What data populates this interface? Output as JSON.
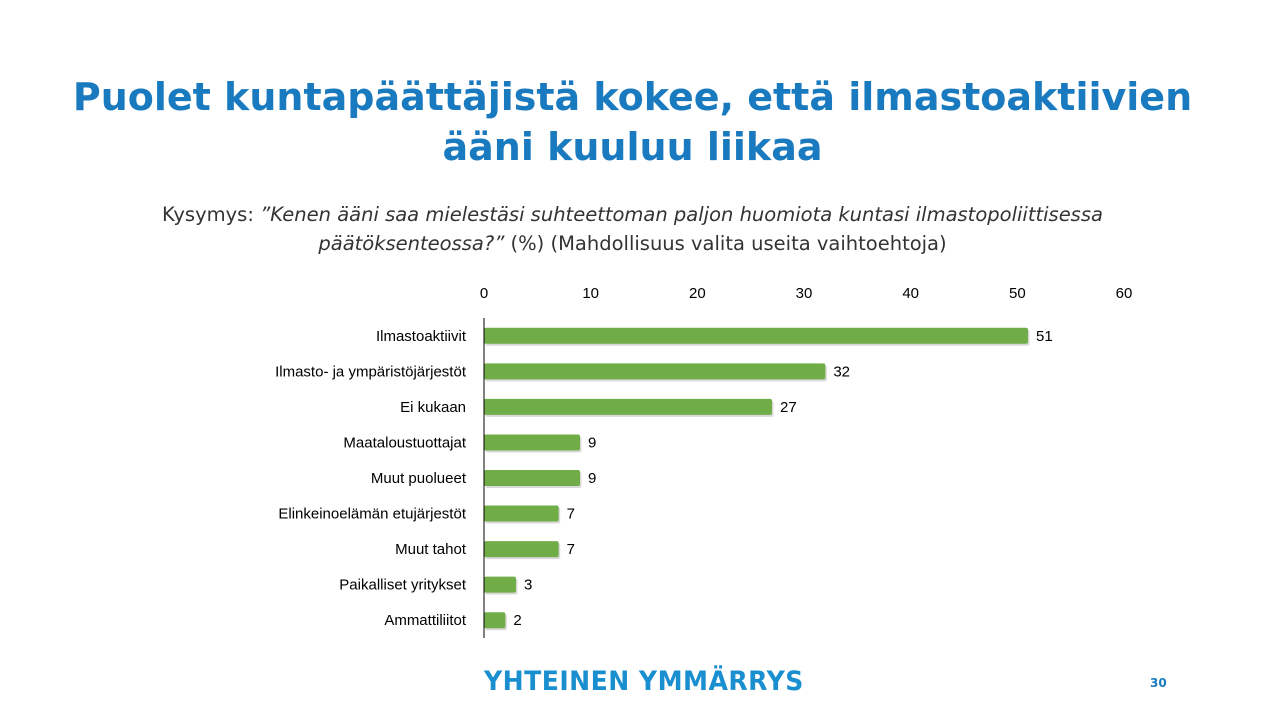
{
  "title": {
    "line1": "Puolet kuntapäättäjistä kokee, että ilmastoaktiivien",
    "line2": "ääni kuuluu liikaa"
  },
  "question": {
    "prefix": "Kysymys: ",
    "italic": "”Kenen ääni saa mielestäsi suhteettoman paljon huomiota kuntasi ilmastopoliittisessa päätöksenteossa?”",
    "suffix": " (%) (Mahdollisuus valita useita vaihtoehtoja)"
  },
  "logo": "YHTEINEN YMMÄRRYS",
  "page_number": "30",
  "colors": {
    "title": "#1a7abf",
    "bar": "#70ad47",
    "logo": "#1a8fd0"
  },
  "chart_data": {
    "type": "bar",
    "orientation": "horizontal",
    "categories": [
      "Ilmastoaktiivit",
      "Ilmasto- ja ympäristöjärjestöt",
      "Ei kukaan",
      "Maataloustuottajat",
      "Muut puolueet",
      "Elinkeinoelämän etujärjestöt",
      "Muut tahot",
      "Paikalliset yritykset",
      "Ammattiliitot"
    ],
    "values": [
      51,
      32,
      27,
      9,
      9,
      7,
      7,
      3,
      2
    ],
    "xlim": [
      0,
      60
    ],
    "xticks": [
      "0",
      "10",
      "20",
      "30",
      "40",
      "50",
      "60"
    ],
    "x_axis_position": "top",
    "grid": false,
    "data_labels": true
  }
}
